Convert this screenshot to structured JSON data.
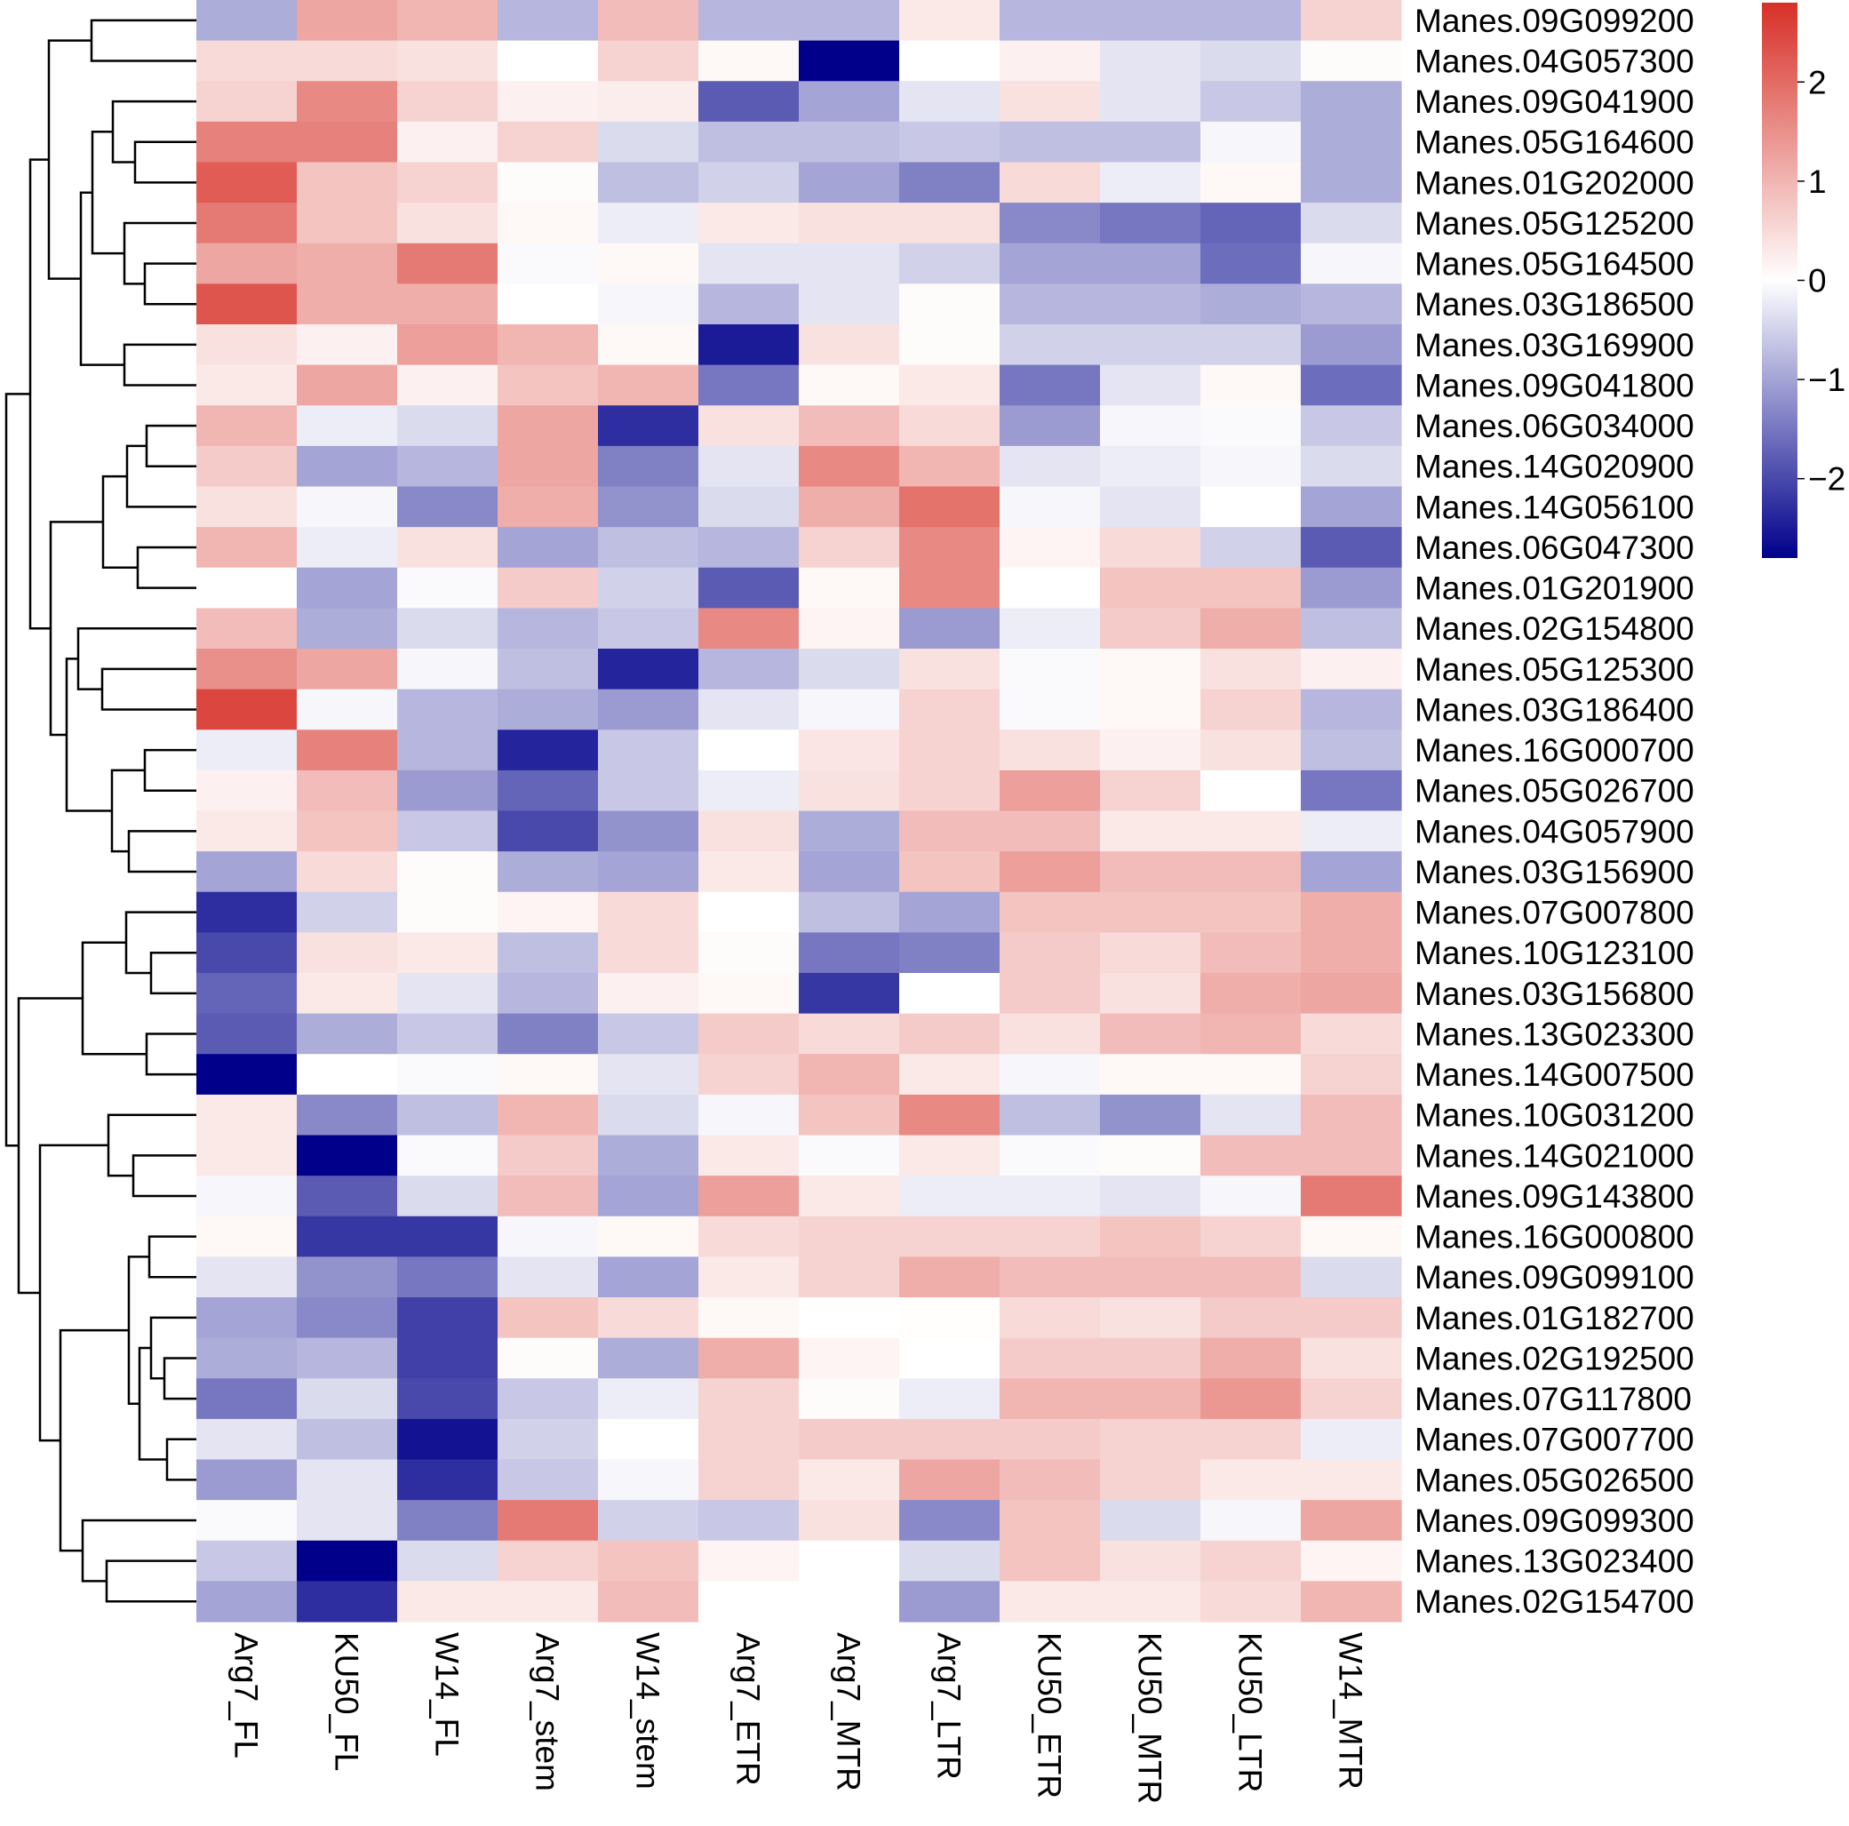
{
  "chart_data": {
    "type": "heatmap",
    "title": "",
    "columns": [
      "Arg7_FL",
      "KU50_FL",
      "W14_FL",
      "Arg7_stem",
      "W14_stem",
      "Arg7_ETR",
      "Arg7_MTR",
      "Arg7_LTR",
      "KU50_ETR",
      "KU50_MTR",
      "KU50_LTR",
      "W14_MTR"
    ],
    "rows": [
      "Manes.09G099200",
      "Manes.04G057300",
      "Manes.09G041900",
      "Manes.05G164600",
      "Manes.01G202000",
      "Manes.05G125200",
      "Manes.05G164500",
      "Manes.03G186500",
      "Manes.03G169900",
      "Manes.09G041800",
      "Manes.06G034000",
      "Manes.14G020900",
      "Manes.14G056100",
      "Manes.06G047300",
      "Manes.01G201900",
      "Manes.02G154800",
      "Manes.05G125300",
      "Manes.03G186400",
      "Manes.16G000700",
      "Manes.05G026700",
      "Manes.04G057900",
      "Manes.03G156900",
      "Manes.07G007800",
      "Manes.10G123100",
      "Manes.03G156800",
      "Manes.13G023300",
      "Manes.14G007500",
      "Manes.10G031200",
      "Manes.14G021000",
      "Manes.09G143800",
      "Manes.16G000800",
      "Manes.09G099100",
      "Manes.01G182700",
      "Manes.02G192500",
      "Manes.07G117800",
      "Manes.07G007700",
      "Manes.05G026500",
      "Manes.09G099300",
      "Manes.13G023400",
      "Manes.02G154700"
    ],
    "values": [
      [
        -0.9,
        1.2,
        1.0,
        -0.8,
        0.9,
        -0.8,
        -0.8,
        0.3,
        -0.8,
        -0.8,
        -0.8,
        0.6
      ],
      [
        0.5,
        0.5,
        0.4,
        0.0,
        0.6,
        0.1,
        -2.8,
        0.0,
        0.2,
        -0.3,
        -0.4,
        0.05
      ],
      [
        0.6,
        1.6,
        0.6,
        0.2,
        0.25,
        -1.8,
        -1.0,
        -0.3,
        0.4,
        -0.3,
        -0.6,
        -0.9
      ],
      [
        1.7,
        1.7,
        0.2,
        0.6,
        -0.4,
        -0.7,
        -0.7,
        -0.6,
        -0.7,
        -0.7,
        -0.1,
        -0.9
      ],
      [
        2.2,
        0.8,
        0.6,
        0.05,
        -0.7,
        -0.5,
        -1.0,
        -1.4,
        0.5,
        -0.2,
        0.1,
        -0.9
      ],
      [
        1.8,
        0.8,
        0.4,
        0.1,
        -0.2,
        0.3,
        0.4,
        0.4,
        -1.3,
        -1.5,
        -1.7,
        -0.4
      ],
      [
        1.2,
        1.1,
        1.8,
        -0.05,
        0.1,
        -0.3,
        -0.3,
        -0.5,
        -1.0,
        -1.0,
        -1.6,
        -0.1
      ],
      [
        2.3,
        1.1,
        1.1,
        0.0,
        -0.1,
        -0.8,
        -0.3,
        0.05,
        -0.8,
        -0.8,
        -0.9,
        -0.8
      ],
      [
        0.4,
        0.2,
        1.3,
        1.0,
        0.1,
        -2.5,
        0.4,
        0.05,
        -0.5,
        -0.5,
        -0.5,
        -1.1
      ],
      [
        0.3,
        1.2,
        0.2,
        0.8,
        1.0,
        -1.5,
        0.1,
        0.3,
        -1.5,
        -0.3,
        0.1,
        -1.6
      ],
      [
        1.0,
        -0.2,
        -0.4,
        1.2,
        -2.3,
        0.4,
        0.9,
        0.5,
        -1.1,
        -0.1,
        -0.05,
        -0.6
      ],
      [
        0.7,
        -1.0,
        -0.8,
        1.2,
        -1.4,
        -0.3,
        1.6,
        1.0,
        -0.3,
        -0.2,
        -0.1,
        -0.4
      ],
      [
        0.4,
        -0.1,
        -1.3,
        1.1,
        -1.2,
        -0.4,
        1.1,
        1.9,
        -0.1,
        -0.3,
        0.0,
        -1.0
      ],
      [
        1.0,
        -0.2,
        0.4,
        -1.0,
        -0.7,
        -0.8,
        0.6,
        1.6,
        0.15,
        0.5,
        -0.5,
        -1.8
      ],
      [
        0.0,
        -1.0,
        -0.05,
        0.7,
        -0.5,
        -1.8,
        0.1,
        1.6,
        0.0,
        0.8,
        0.8,
        -1.1
      ],
      [
        0.9,
        -0.9,
        -0.4,
        -0.8,
        -0.6,
        1.6,
        0.15,
        -1.1,
        -0.2,
        0.7,
        1.1,
        -0.7
      ],
      [
        1.5,
        1.2,
        -0.1,
        -0.7,
        -2.4,
        -0.8,
        -0.4,
        0.4,
        -0.05,
        0.1,
        0.4,
        0.2
      ],
      [
        2.5,
        -0.1,
        -0.8,
        -0.9,
        -1.1,
        -0.3,
        -0.1,
        0.6,
        -0.05,
        0.1,
        0.6,
        -0.8
      ],
      [
        -0.2,
        1.7,
        -0.8,
        -2.4,
        -0.6,
        0.0,
        0.35,
        0.6,
        0.4,
        0.2,
        0.4,
        -0.7
      ],
      [
        0.2,
        0.9,
        -1.1,
        -1.7,
        -0.6,
        -0.2,
        0.4,
        0.6,
        1.3,
        0.6,
        0.0,
        -1.5
      ],
      [
        0.3,
        0.8,
        -0.6,
        -2.0,
        -1.2,
        0.4,
        -0.9,
        0.9,
        0.9,
        0.3,
        0.3,
        -0.2
      ],
      [
        -1.0,
        0.5,
        0.05,
        -0.9,
        -1.0,
        0.3,
        -1.0,
        0.8,
        1.3,
        0.9,
        0.9,
        -1.0
      ],
      [
        -2.3,
        -0.5,
        0.05,
        0.15,
        0.5,
        0.0,
        -0.7,
        -1.0,
        0.8,
        0.8,
        0.8,
        1.1
      ],
      [
        -2.0,
        0.4,
        0.3,
        -0.7,
        0.5,
        0.05,
        -1.5,
        -1.4,
        0.7,
        0.5,
        0.9,
        1.1
      ],
      [
        -1.7,
        0.3,
        -0.3,
        -0.8,
        0.2,
        0.1,
        -2.2,
        0.0,
        0.7,
        0.4,
        1.1,
        1.2
      ],
      [
        -1.8,
        -0.9,
        -0.6,
        -1.4,
        -0.6,
        0.7,
        0.5,
        0.7,
        0.4,
        0.9,
        1.0,
        0.5
      ],
      [
        -2.8,
        0.0,
        -0.05,
        0.1,
        -0.3,
        0.6,
        1.0,
        0.3,
        -0.1,
        0.1,
        0.1,
        0.6
      ],
      [
        0.3,
        -1.3,
        -0.7,
        1.0,
        -0.4,
        -0.1,
        0.8,
        1.6,
        -0.7,
        -1.2,
        -0.3,
        0.9
      ],
      [
        0.3,
        -2.8,
        -0.05,
        0.7,
        -0.9,
        0.3,
        -0.05,
        0.3,
        -0.05,
        0.05,
        0.9,
        0.9
      ],
      [
        -0.1,
        -1.8,
        -0.4,
        0.9,
        -1.0,
        1.3,
        0.3,
        -0.2,
        -0.2,
        -0.3,
        -0.1,
        1.8
      ],
      [
        0.1,
        -2.2,
        -2.2,
        -0.1,
        0.1,
        0.5,
        0.6,
        0.6,
        0.6,
        0.8,
        0.6,
        0.1
      ],
      [
        -0.3,
        -1.2,
        -1.5,
        -0.3,
        -1.0,
        0.3,
        0.6,
        1.1,
        0.9,
        0.9,
        0.9,
        -0.4
      ],
      [
        -1.0,
        -1.3,
        -2.1,
        0.8,
        0.5,
        0.1,
        0.0,
        0.02,
        0.5,
        0.4,
        0.7,
        0.7
      ],
      [
        -0.9,
        -0.8,
        -2.1,
        0.05,
        -0.9,
        1.1,
        0.15,
        0.0,
        0.7,
        0.7,
        1.1,
        0.4
      ],
      [
        -1.5,
        -0.4,
        -2.0,
        -0.6,
        -0.2,
        0.6,
        0.05,
        -0.2,
        1.0,
        1.0,
        1.4,
        0.6
      ],
      [
        -0.3,
        -0.7,
        -2.6,
        -0.5,
        0.0,
        0.6,
        0.7,
        0.7,
        0.7,
        0.6,
        0.6,
        -0.2
      ],
      [
        -1.1,
        -0.3,
        -2.3,
        -0.6,
        -0.1,
        0.6,
        0.3,
        1.2,
        0.9,
        0.6,
        0.3,
        0.3
      ],
      [
        -0.05,
        -0.3,
        -1.4,
        1.8,
        -0.5,
        -0.6,
        0.4,
        -1.3,
        0.8,
        -0.4,
        -0.1,
        1.2
      ],
      [
        -0.6,
        -2.8,
        -0.4,
        0.6,
        0.8,
        0.15,
        0.0,
        -0.4,
        0.8,
        0.4,
        0.6,
        0.15
      ],
      [
        -1.0,
        -2.3,
        0.3,
        0.3,
        0.9,
        0.0,
        0.0,
        -1.1,
        0.3,
        0.3,
        0.5,
        1.0
      ]
    ],
    "color_scale": {
      "min": -2.8,
      "mid": 0,
      "max": 2.8,
      "low_color": "#00008b",
      "mid_color": "#ffffff",
      "high_color": "#d73027"
    },
    "legend_ticks": [
      2,
      1,
      0,
      -1,
      -2
    ],
    "legend_tick_labels": [
      "2",
      "1",
      "0",
      "−1",
      "−2"
    ]
  }
}
